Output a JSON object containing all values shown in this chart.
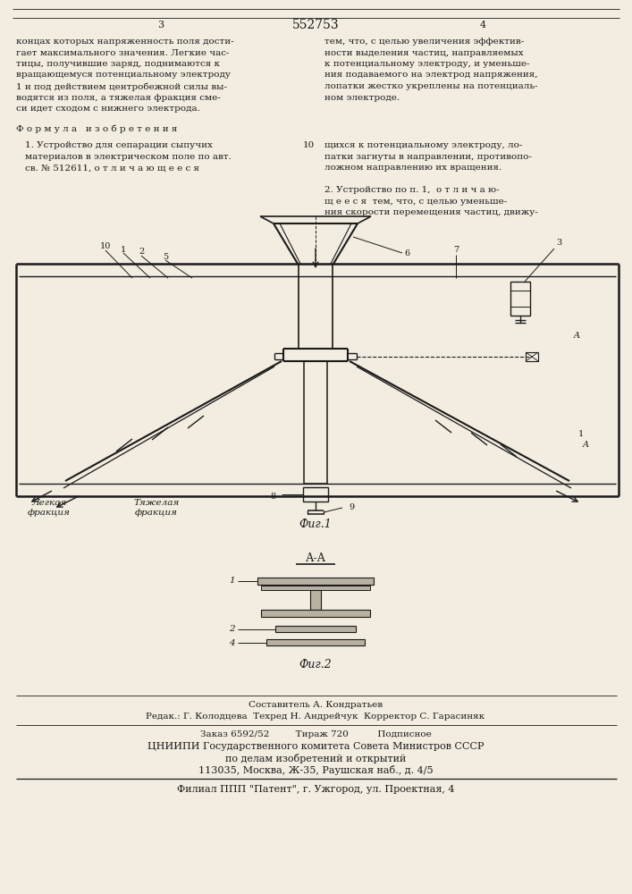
{
  "page_color": "#f2ede0",
  "text_color": "#1a1a1a",
  "title_number": "552753",
  "page_left": "3",
  "page_right": "4",
  "top_text_left": [
    "концах которых напряженность поля дости-",
    "гает максимального значения. Легкие час-",
    "тицы, получившие заряд, поднимаются к",
    "вращающемуся потенциальному электроду",
    "1 и под действием центробежной силы вы-",
    "водятся из поля, а тяжелая фракция сме-",
    "си идет сходом с нижнего электрода."
  ],
  "top_text_right": [
    "тем, что, с целью увеличения эффектив-",
    "ности выделения частиц, направляемых",
    "к потенциальному электроду, и уменьше-",
    "ния подаваемого на электрод напряжения,",
    "лопатки жестко укреплены на потенциаль-",
    "ном электроде."
  ],
  "formula_text": "Ф о р м у л а   и з о б р е т е н и я",
  "claim1_left": [
    "1. Устройство для сепарации сыпучих",
    "материалов в электрическом поле по авт.",
    "св. № 512611, о т л и ч а ю щ е е с я"
  ],
  "claim1_right_num": "10",
  "claim2_right": [
    "щихся к потенциальному электроду, ло-",
    "патки загнуты в направлении, противопо-",
    "ложном направлению их вращения."
  ],
  "claim2_left": [
    "2. Устройство по п. 1,  о т л и ч а ю-",
    "щ е е с я  тем, что, с целью уменьше-",
    "ния скорости перемещения частиц, движу-"
  ],
  "fig1_caption": "Фиг.1",
  "fig2_caption": "Фиг.2",
  "aa_label": "А-А",
  "bottom_text": [
    "Составитель А. Кондратьев",
    "Редак.: Г. Колодцева  Техред Н. Андрейчук  Корректор С. Гарасиняк",
    "Заказ 6592/52         Тираж 720          Подписное",
    "ЦНИИПИ Государственного комитета Совета Министров СССР",
    "по делам изобретений и открытий",
    "113035, Москва, Ж-35, Раушская наб., д. 4/5",
    "Филиал ППП \"Патент\", г. Ужгород, ул. Проектная, 4"
  ]
}
